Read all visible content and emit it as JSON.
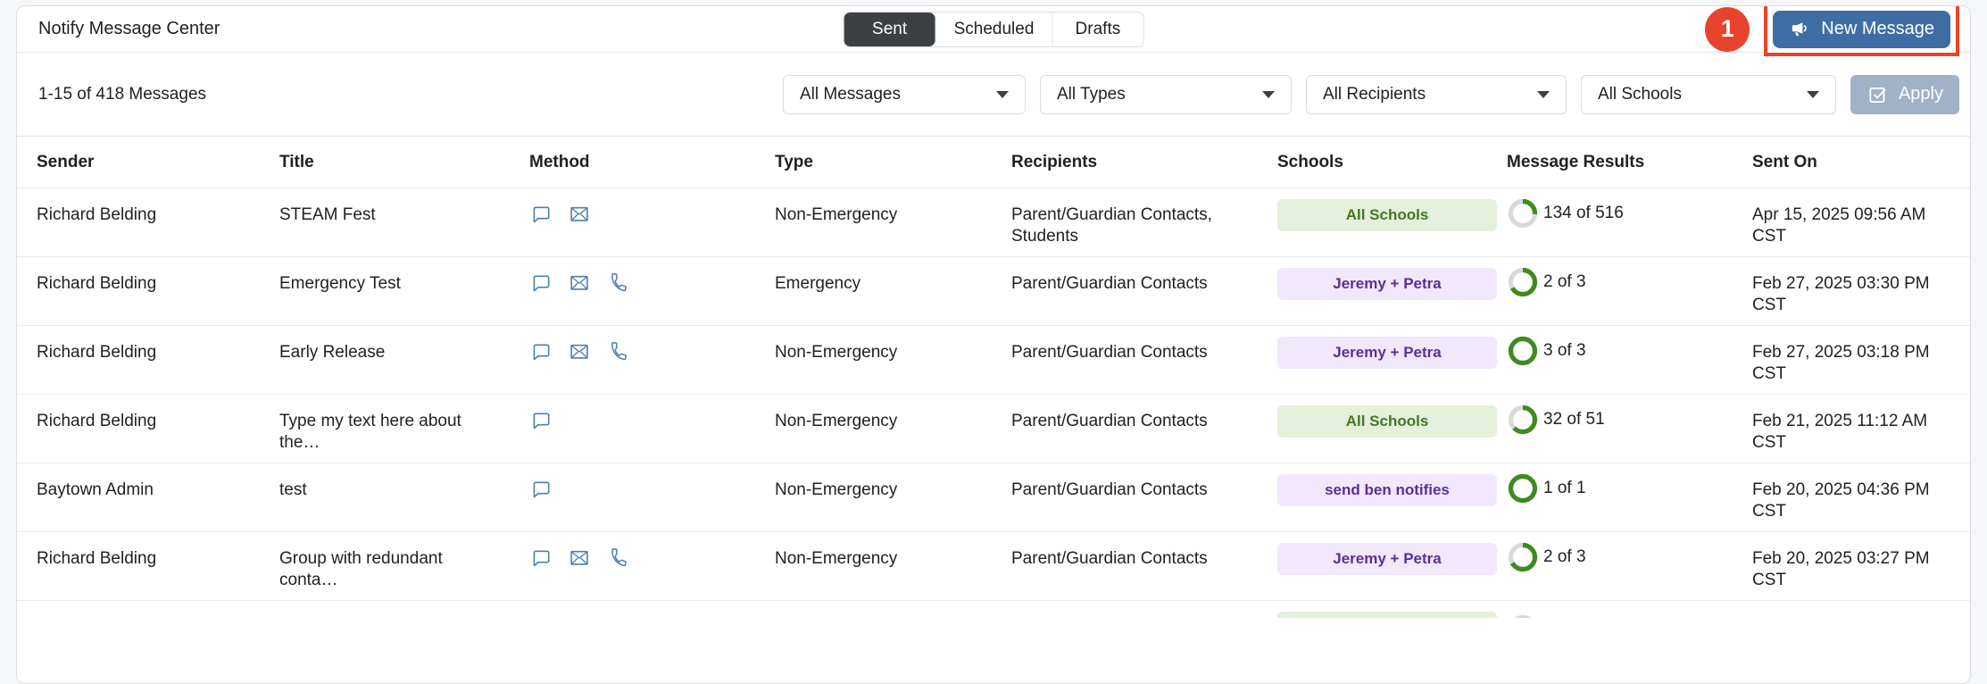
{
  "header": {
    "title": "Notify Message Center",
    "tabs": [
      {
        "label": "Sent",
        "active": true
      },
      {
        "label": "Scheduled",
        "active": false
      },
      {
        "label": "Drafts",
        "active": false
      }
    ],
    "new_message_label": "New Message"
  },
  "annotation": {
    "step": "1"
  },
  "filters": {
    "count_text": "1-15 of 418 Messages",
    "dropdowns": [
      {
        "value": "All Messages"
      },
      {
        "value": "All Types"
      },
      {
        "value": "All Recipients"
      },
      {
        "value": "All Schools"
      }
    ],
    "apply_label": "Apply"
  },
  "table": {
    "columns": [
      "Sender",
      "Title",
      "Method",
      "Type",
      "Recipients",
      "Schools",
      "Message Results",
      "Sent On"
    ],
    "rows": [
      {
        "sender": "Richard Belding",
        "title": "STEAM Fest",
        "methods": [
          "chat-icon",
          "email-icon"
        ],
        "type": "Non-Emergency",
        "recipients": "Parent/Guardian Contacts, Students",
        "school_badge": {
          "label": "All Schools",
          "color": "green"
        },
        "results": {
          "done": 134,
          "total": 516,
          "label": "134 of 516"
        },
        "sent_on": "Apr 15, 2025 09:56 AM CST"
      },
      {
        "sender": "Richard Belding",
        "title": "Emergency Test",
        "methods": [
          "chat-icon",
          "email-icon",
          "phone-icon"
        ],
        "type": "Emergency",
        "recipients": "Parent/Guardian Contacts",
        "school_badge": {
          "label": "Jeremy + Petra",
          "color": "purple"
        },
        "results": {
          "done": 2,
          "total": 3,
          "label": "2 of 3"
        },
        "sent_on": "Feb 27, 2025 03:30 PM CST"
      },
      {
        "sender": "Richard Belding",
        "title": "Early Release",
        "methods": [
          "chat-icon",
          "email-icon",
          "phone-icon"
        ],
        "type": "Non-Emergency",
        "recipients": "Parent/Guardian Contacts",
        "school_badge": {
          "label": "Jeremy + Petra",
          "color": "purple"
        },
        "results": {
          "done": 3,
          "total": 3,
          "label": "3 of 3"
        },
        "sent_on": "Feb 27, 2025 03:18 PM CST"
      },
      {
        "sender": "Richard Belding",
        "title": "Type my text here about the…",
        "methods": [
          "chat-icon"
        ],
        "type": "Non-Emergency",
        "recipients": "Parent/Guardian Contacts",
        "school_badge": {
          "label": "All Schools",
          "color": "green"
        },
        "results": {
          "done": 32,
          "total": 51,
          "label": "32 of 51"
        },
        "sent_on": "Feb 21, 2025 11:12 AM CST"
      },
      {
        "sender": "Baytown Admin",
        "title": "test",
        "methods": [
          "chat-icon"
        ],
        "type": "Non-Emergency",
        "recipients": "Parent/Guardian Contacts",
        "school_badge": {
          "label": "send ben notifies",
          "color": "purple"
        },
        "results": {
          "done": 1,
          "total": 1,
          "label": "1 of 1"
        },
        "sent_on": "Feb 20, 2025 04:36 PM CST"
      },
      {
        "sender": "Richard Belding",
        "title": "Group with redundant conta…",
        "methods": [
          "chat-icon",
          "email-icon",
          "phone-icon"
        ],
        "type": "Non-Emergency",
        "recipients": "Parent/Guardian Contacts",
        "school_badge": {
          "label": "Jeremy + Petra",
          "color": "purple"
        },
        "results": {
          "done": 2,
          "total": 3,
          "label": "2 of 3"
        },
        "sent_on": "Feb 20, 2025 03:27 PM CST"
      }
    ],
    "partial_row": {
      "school_badge": {
        "label": "",
        "color": "green"
      }
    }
  },
  "colors": {
    "primary_button": "#3e6da3",
    "annotation_red": "#e8432c",
    "active_tab": "#3c4043",
    "apply_button": "#9fb2c8",
    "badge_green_bg": "#e4efdc",
    "badge_green_text": "#41791f",
    "badge_purple_bg": "#f2e8fb",
    "badge_purple_text": "#5b2f96",
    "ring_green": "#3e8b1f",
    "ring_track": "#d9d9d9",
    "method_icon_blue": "#4e7fae"
  }
}
